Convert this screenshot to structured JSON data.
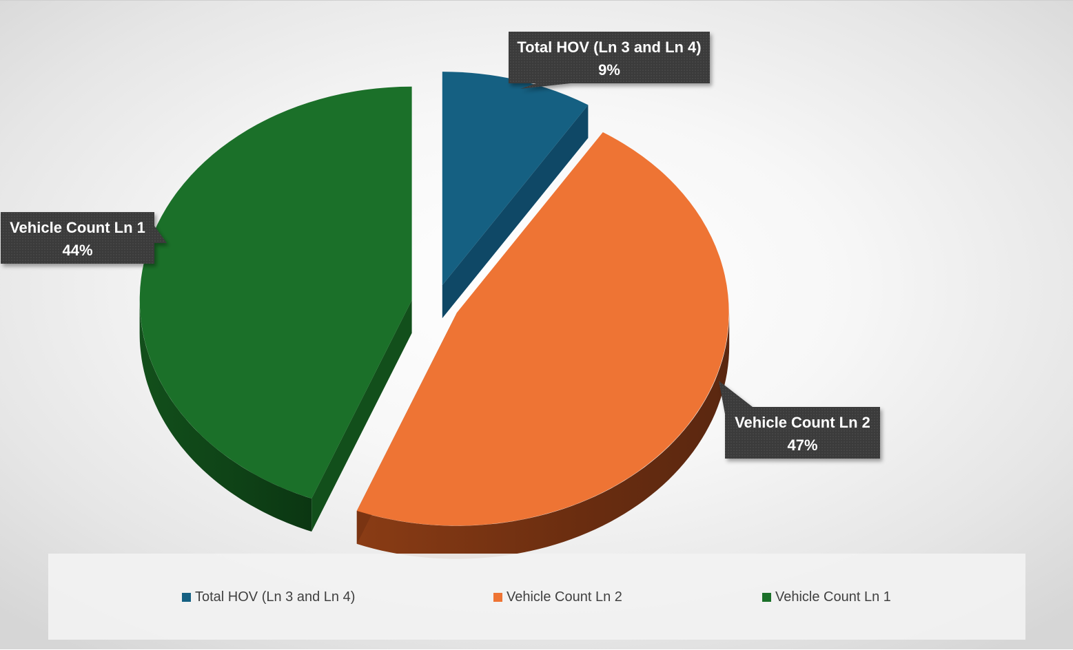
{
  "chart_data": {
    "type": "pie",
    "style": "3d-exploded",
    "title": "",
    "legend_position": "bottom",
    "slices": [
      {
        "label": "Total HOV (Ln 3 and Ln 4)",
        "percent": 9,
        "percent_label": "9%",
        "color": "#156082",
        "side_color": "#0e4663"
      },
      {
        "label": "Vehicle Count Ln 2",
        "percent": 47,
        "percent_label": "47%",
        "color": "#ee7434",
        "side_color": "#7a3412"
      },
      {
        "label": "Vehicle Count Ln 1",
        "percent": 44,
        "percent_label": "44%",
        "color": "#1b7029",
        "side_color": "#0f4a18"
      }
    ]
  }
}
